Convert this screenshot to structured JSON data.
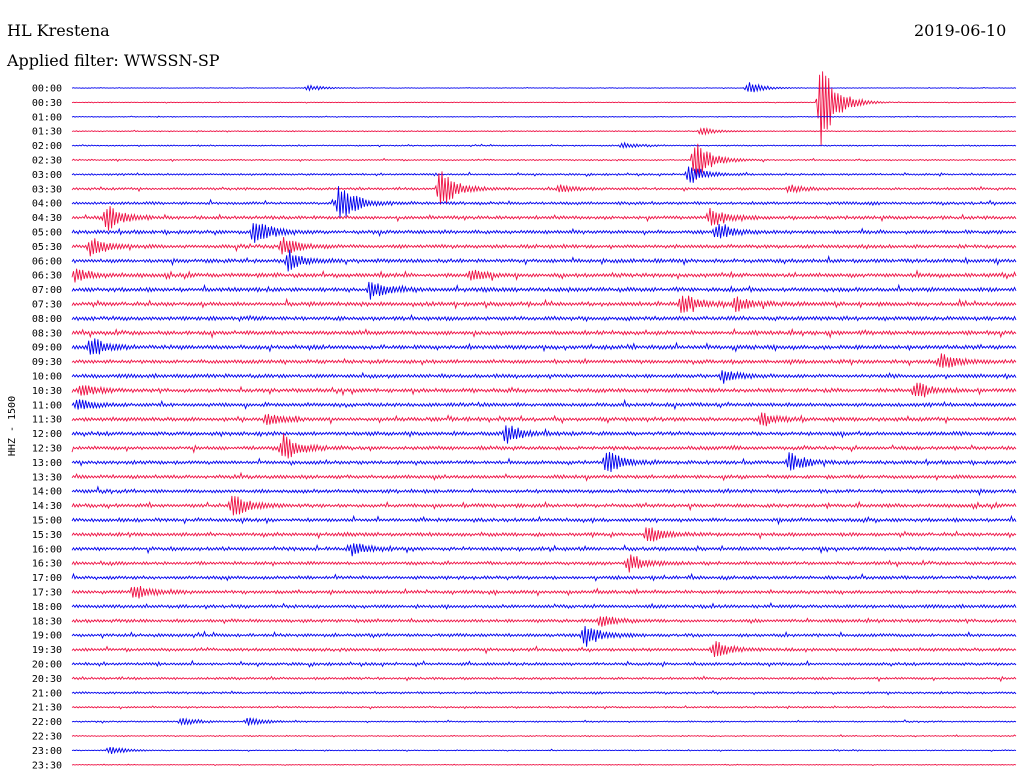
{
  "header": {
    "station": "HL Krestena",
    "date": "2019-06-10",
    "filter": "Applied filter: WWSSN-SP"
  },
  "chart_data": {
    "type": "line",
    "title": "HL Krestena",
    "subtitle": "Applied filter: WWSSN-SP",
    "ylabel": "HHZ - 1500",
    "xlabel": "",
    "grid": false,
    "legend": "none",
    "colors": [
      "#0000ee",
      "#ee1144"
    ],
    "rows": [
      "00:00",
      "00:30",
      "01:00",
      "01:30",
      "02:00",
      "02:30",
      "03:00",
      "03:30",
      "04:00",
      "04:30",
      "05:00",
      "05:30",
      "06:00",
      "06:30",
      "07:00",
      "07:30",
      "08:00",
      "08:30",
      "09:00",
      "09:30",
      "10:00",
      "10:30",
      "11:00",
      "11:30",
      "12:00",
      "12:30",
      "13:00",
      "13:30",
      "14:00",
      "14:30",
      "15:00",
      "15:30",
      "16:00",
      "16:30",
      "17:00",
      "17:30",
      "18:00",
      "18:30",
      "19:00",
      "19:30",
      "20:00",
      "20:30",
      "21:00",
      "21:30",
      "22:00",
      "22:30",
      "23:00",
      "23:30"
    ],
    "noise_level": [
      0.3,
      0.3,
      0.3,
      0.4,
      0.5,
      0.6,
      0.8,
      1.0,
      1.2,
      1.4,
      1.5,
      1.5,
      1.6,
      1.7,
      1.7,
      1.7,
      1.7,
      1.7,
      1.7,
      1.6,
      1.6,
      1.6,
      1.6,
      1.6,
      1.6,
      1.5,
      1.5,
      1.5,
      1.5,
      1.5,
      1.5,
      1.5,
      1.5,
      1.4,
      1.4,
      1.4,
      1.4,
      1.4,
      1.3,
      1.3,
      1.2,
      1.0,
      0.9,
      0.7,
      0.6,
      0.5,
      0.4,
      0.3
    ],
    "events": [
      {
        "row": 0,
        "minute": 21.5,
        "amplitude": 6
      },
      {
        "row": 0,
        "minute": 7.5,
        "amplitude": 3
      },
      {
        "row": 1,
        "minute": 23.8,
        "amplitude": 45
      },
      {
        "row": 3,
        "minute": 20.0,
        "amplitude": 4
      },
      {
        "row": 4,
        "minute": 17.5,
        "amplitude": 3
      },
      {
        "row": 5,
        "minute": 19.8,
        "amplitude": 22
      },
      {
        "row": 6,
        "minute": 19.6,
        "amplitude": 10
      },
      {
        "row": 7,
        "minute": 11.7,
        "amplitude": 22
      },
      {
        "row": 7,
        "minute": 15.5,
        "amplitude": 4
      },
      {
        "row": 7,
        "minute": 22.8,
        "amplitude": 4
      },
      {
        "row": 8,
        "minute": 8.5,
        "amplitude": 22
      },
      {
        "row": 9,
        "minute": 1.1,
        "amplitude": 14
      },
      {
        "row": 9,
        "minute": 20.3,
        "amplitude": 10
      },
      {
        "row": 10,
        "minute": 5.8,
        "amplitude": 14
      },
      {
        "row": 10,
        "minute": 20.5,
        "amplitude": 8
      },
      {
        "row": 11,
        "minute": 0.6,
        "amplitude": 10
      },
      {
        "row": 11,
        "minute": 6.7,
        "amplitude": 10
      },
      {
        "row": 12,
        "minute": 6.9,
        "amplitude": 10
      },
      {
        "row": 13,
        "minute": 0.1,
        "amplitude": 6
      },
      {
        "row": 13,
        "minute": 12.7,
        "amplitude": 6
      },
      {
        "row": 14,
        "minute": 9.5,
        "amplitude": 10
      },
      {
        "row": 15,
        "minute": 19.4,
        "amplitude": 10
      },
      {
        "row": 15,
        "minute": 21.1,
        "amplitude": 8
      },
      {
        "row": 18,
        "minute": 0.6,
        "amplitude": 10
      },
      {
        "row": 19,
        "minute": 27.6,
        "amplitude": 9
      },
      {
        "row": 20,
        "minute": 20.7,
        "amplitude": 6
      },
      {
        "row": 21,
        "minute": 26.8,
        "amplitude": 8
      },
      {
        "row": 21,
        "minute": 0.3,
        "amplitude": 6
      },
      {
        "row": 22,
        "minute": 0.2,
        "amplitude": 5
      },
      {
        "row": 23,
        "minute": 21.9,
        "amplitude": 6
      },
      {
        "row": 23,
        "minute": 6.2,
        "amplitude": 6
      },
      {
        "row": 24,
        "minute": 13.8,
        "amplitude": 10
      },
      {
        "row": 25,
        "minute": 6.7,
        "amplitude": 14
      },
      {
        "row": 26,
        "minute": 17.0,
        "amplitude": 12
      },
      {
        "row": 26,
        "minute": 22.8,
        "amplitude": 10
      },
      {
        "row": 29,
        "minute": 5.1,
        "amplitude": 12
      },
      {
        "row": 31,
        "minute": 18.3,
        "amplitude": 9
      },
      {
        "row": 32,
        "minute": 8.9,
        "amplitude": 6
      },
      {
        "row": 33,
        "minute": 17.7,
        "amplitude": 9
      },
      {
        "row": 35,
        "minute": 2.0,
        "amplitude": 7
      },
      {
        "row": 37,
        "minute": 16.8,
        "amplitude": 6
      },
      {
        "row": 38,
        "minute": 16.3,
        "amplitude": 12
      },
      {
        "row": 39,
        "minute": 20.4,
        "amplitude": 9
      },
      {
        "row": 44,
        "minute": 3.5,
        "amplitude": 4
      },
      {
        "row": 44,
        "minute": 5.6,
        "amplitude": 4
      },
      {
        "row": 46,
        "minute": 1.2,
        "amplitude": 4
      }
    ]
  }
}
